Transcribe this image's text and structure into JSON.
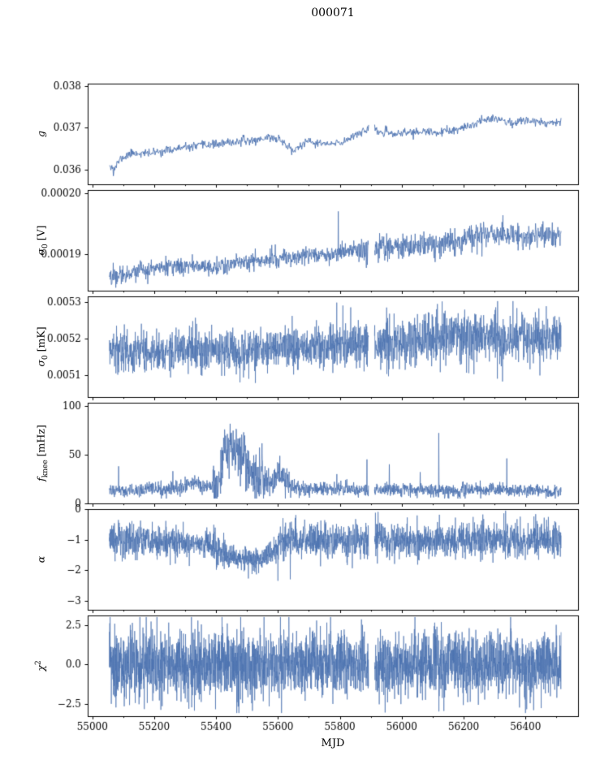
{
  "title": "000071",
  "xlabel": "MJD",
  "line_color": "#4c72b0",
  "axis_color": "#000000",
  "x": {
    "min": 54985,
    "max": 56570,
    "data_start": 55055,
    "data_end": 56515,
    "tick_values": [
      55000,
      55200,
      55400,
      55600,
      55800,
      56000,
      56200,
      56400
    ],
    "tick_labels": [
      "55000",
      "55200",
      "55400",
      "55600",
      "55800",
      "56000",
      "56200",
      "56400"
    ],
    "minor_step": 100,
    "gaps": [
      [
        55893,
        55912
      ]
    ]
  },
  "chart_data": [
    {
      "type": "line",
      "name": "gain",
      "ylabel": {
        "main": "g",
        "sub": "",
        "sup": "",
        "unit": ""
      },
      "ylim": [
        0.03565,
        0.03805
      ],
      "ytick_values": [
        0.036,
        0.037,
        0.038
      ],
      "ytick_labels": [
        "0.036",
        "0.037",
        "0.038"
      ],
      "noise": 5e-05,
      "noise_regions": [],
      "trend": [
        [
          55055,
          0.03615
        ],
        [
          55070,
          0.036
        ],
        [
          55090,
          0.03625
        ],
        [
          55130,
          0.0364
        ],
        [
          55180,
          0.03638
        ],
        [
          55230,
          0.03645
        ],
        [
          55280,
          0.0365
        ],
        [
          55330,
          0.03655
        ],
        [
          55380,
          0.0366
        ],
        [
          55430,
          0.03662
        ],
        [
          55480,
          0.03668
        ],
        [
          55530,
          0.0367
        ],
        [
          55570,
          0.03678
        ],
        [
          55610,
          0.0367
        ],
        [
          55650,
          0.03645
        ],
        [
          55690,
          0.03665
        ],
        [
          55730,
          0.03663
        ],
        [
          55770,
          0.0366
        ],
        [
          55810,
          0.03665
        ],
        [
          55850,
          0.03685
        ],
        [
          55890,
          0.03695
        ],
        [
          55930,
          0.0369
        ],
        [
          55970,
          0.03685
        ],
        [
          56010,
          0.03688
        ],
        [
          56060,
          0.0369
        ],
        [
          56110,
          0.03688
        ],
        [
          56160,
          0.03692
        ],
        [
          56210,
          0.037
        ],
        [
          56250,
          0.03715
        ],
        [
          56290,
          0.03725
        ],
        [
          56320,
          0.0372
        ],
        [
          56350,
          0.0371
        ],
        [
          56380,
          0.03715
        ],
        [
          56420,
          0.03718
        ],
        [
          56460,
          0.03712
        ],
        [
          56515,
          0.03715
        ]
      ],
      "spikes": [
        [
          55068,
          0.03585
        ],
        [
          55645,
          0.03635
        ]
      ],
      "clamp": [
        0.0357,
        0.038
      ]
    },
    {
      "type": "line",
      "name": "sigma0-volts",
      "ylabel": {
        "main": "σ",
        "sub": "0",
        "sup": "",
        "unit": " [V]"
      },
      "ylim": [
        0.000184,
        0.0002005
      ],
      "ytick_values": [
        0.00019,
        0.0002
      ],
      "ytick_labels": [
        "0.00019",
        "0.00020"
      ],
      "noise": 7e-07,
      "noise_regions": [
        [
          55850,
          56515,
          1.5
        ]
      ],
      "trend": [
        [
          55055,
          0.0001862
        ],
        [
          55100,
          0.0001868
        ],
        [
          55150,
          0.0001872
        ],
        [
          55200,
          0.0001876
        ],
        [
          55250,
          0.0001878
        ],
        [
          55300,
          0.000188
        ],
        [
          55350,
          0.0001882
        ],
        [
          55390,
          0.0001878
        ],
        [
          55430,
          0.000188
        ],
        [
          55470,
          0.0001885
        ],
        [
          55510,
          0.0001888
        ],
        [
          55550,
          0.000189
        ],
        [
          55600,
          0.0001893
        ],
        [
          55650,
          0.0001895
        ],
        [
          55700,
          0.0001898
        ],
        [
          55750,
          0.00019
        ],
        [
          55800,
          0.0001902
        ],
        [
          55850,
          0.0001905
        ],
        [
          55900,
          0.0001908
        ],
        [
          55950,
          0.000191
        ],
        [
          56000,
          0.0001912
        ],
        [
          56050,
          0.0001913
        ],
        [
          56100,
          0.0001915
        ],
        [
          56150,
          0.0001918
        ],
        [
          56200,
          0.0001922
        ],
        [
          56240,
          0.000193
        ],
        [
          56280,
          0.0001935
        ],
        [
          56320,
          0.0001933
        ],
        [
          56360,
          0.000193
        ],
        [
          56400,
          0.0001928
        ],
        [
          56440,
          0.000193
        ],
        [
          56480,
          0.0001932
        ],
        [
          56515,
          0.0001933
        ]
      ],
      "spikes": [
        [
          55795,
          0.000197
        ]
      ],
      "clamp": [
        0.0001845,
        0.0002
      ]
    },
    {
      "type": "line",
      "name": "sigma0-millikelvin",
      "ylabel": {
        "main": "σ",
        "sub": "0",
        "sup": "",
        "unit": " [mK]"
      },
      "ylim": [
        0.00504,
        0.005315
      ],
      "ytick_values": [
        0.0051,
        0.0052,
        0.0053
      ],
      "ytick_labels": [
        "0.0051",
        "0.0052",
        "0.0053"
      ],
      "noise": 2.8e-05,
      "noise_regions": [
        [
          55950,
          56515,
          1.25
        ]
      ],
      "trend": [
        [
          55055,
          0.005168
        ],
        [
          55150,
          0.005162
        ],
        [
          55250,
          0.005165
        ],
        [
          55350,
          0.005168
        ],
        [
          55450,
          0.005165
        ],
        [
          55550,
          0.005168
        ],
        [
          55650,
          0.005172
        ],
        [
          55750,
          0.00518
        ],
        [
          55850,
          0.005185
        ],
        [
          55950,
          0.00519
        ],
        [
          56050,
          0.005195
        ],
        [
          56150,
          0.0052
        ],
        [
          56250,
          0.005205
        ],
        [
          56350,
          0.0052
        ],
        [
          56450,
          0.005202
        ],
        [
          56515,
          0.005205
        ]
      ],
      "spikes": [
        [
          55790,
          0.005298
        ],
        [
          55810,
          0.00529
        ],
        [
          55835,
          0.005285
        ],
        [
          56140,
          0.005275
        ]
      ],
      "clamp": [
        0.005048,
        0.005302
      ]
    },
    {
      "type": "line",
      "name": "knee-frequency",
      "ylabel": {
        "main": "f",
        "sub": "knee",
        "sup": "",
        "unit": " [mHz]"
      },
      "ylim": [
        0,
        103
      ],
      "ytick_values": [
        0,
        50,
        100
      ],
      "ytick_labels": [
        "0",
        "50",
        "100"
      ],
      "noise": 3.5,
      "noise_regions": [
        [
          55390,
          55560,
          4.0
        ],
        [
          55560,
          55650,
          2.0
        ]
      ],
      "trend": [
        [
          55055,
          13
        ],
        [
          55100,
          13
        ],
        [
          55200,
          14
        ],
        [
          55300,
          16
        ],
        [
          55330,
          22
        ],
        [
          55360,
          16
        ],
        [
          55390,
          18
        ],
        [
          55415,
          35
        ],
        [
          55435,
          55
        ],
        [
          55450,
          60
        ],
        [
          55465,
          50
        ],
        [
          55480,
          45
        ],
        [
          55500,
          38
        ],
        [
          55520,
          30
        ],
        [
          55545,
          24
        ],
        [
          55570,
          20
        ],
        [
          55590,
          26
        ],
        [
          55605,
          30
        ],
        [
          55620,
          24
        ],
        [
          55640,
          17
        ],
        [
          55680,
          15
        ],
        [
          55800,
          15
        ],
        [
          55920,
          13
        ],
        [
          56000,
          14
        ],
        [
          56100,
          13
        ],
        [
          56200,
          13
        ],
        [
          56300,
          14
        ],
        [
          56400,
          13
        ],
        [
          56515,
          12
        ]
      ],
      "spikes": [
        [
          55085,
          38
        ],
        [
          55260,
          33
        ],
        [
          55790,
          30
        ],
        [
          55888,
          45
        ],
        [
          55960,
          40
        ],
        [
          56060,
          32
        ],
        [
          56120,
          72
        ],
        [
          56340,
          46
        ]
      ],
      "clamp": [
        5,
        101
      ]
    },
    {
      "type": "line",
      "name": "alpha",
      "ylabel": {
        "main": "α",
        "sub": "",
        "sup": "",
        "unit": ""
      },
      "ylim": [
        -3.3,
        0
      ],
      "ytick_values": [
        0,
        -1,
        -2,
        -3
      ],
      "ytick_labels": [
        "0",
        "−1",
        "−2",
        "−3"
      ],
      "noise": 0.28,
      "noise_regions": [
        [
          55315,
          55360,
          0.45
        ],
        [
          55430,
          55600,
          0.7
        ]
      ],
      "trend": [
        [
          55055,
          -1.05
        ],
        [
          55150,
          -1.0
        ],
        [
          55250,
          -1.05
        ],
        [
          55320,
          -1.2
        ],
        [
          55340,
          -1.1
        ],
        [
          55380,
          -1.15
        ],
        [
          55420,
          -1.45
        ],
        [
          55450,
          -1.6
        ],
        [
          55500,
          -1.65
        ],
        [
          55540,
          -1.65
        ],
        [
          55570,
          -1.5
        ],
        [
          55600,
          -1.25
        ],
        [
          55615,
          -1.05
        ],
        [
          55700,
          -1.0
        ],
        [
          55800,
          -1.05
        ],
        [
          55920,
          -1.0
        ],
        [
          56000,
          -1.05
        ],
        [
          56200,
          -1.0
        ],
        [
          56515,
          -1.05
        ]
      ],
      "spikes": [
        [
          55600,
          -2.35
        ],
        [
          55640,
          -2.3
        ],
        [
          55915,
          -0.12
        ]
      ],
      "clamp": [
        -3.2,
        -0.02
      ]
    },
    {
      "type": "line",
      "name": "chi-squared",
      "ylabel": {
        "main": "χ",
        "sub": "",
        "sup": "2",
        "unit": ""
      },
      "ylim": [
        -3.3,
        3.1
      ],
      "ytick_values": [
        2.5,
        0,
        -2.5
      ],
      "ytick_labels": [
        "2.5",
        "0.0",
        "−2.5"
      ],
      "noise": 1.05,
      "noise_regions": [],
      "trend": [
        [
          55055,
          0
        ],
        [
          56515,
          0
        ]
      ],
      "spikes": [
        [
          55330,
          -2.95
        ],
        [
          55870,
          2.85
        ],
        [
          56120,
          -3.0
        ]
      ],
      "clamp": [
        -3.1,
        3.0
      ]
    }
  ]
}
